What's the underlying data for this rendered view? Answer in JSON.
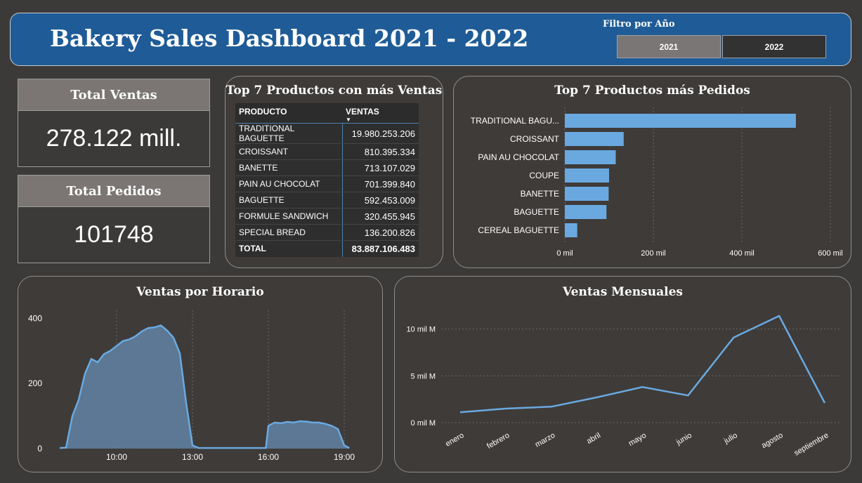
{
  "header": {
    "title": "Bakery Sales Dashboard 2021 - 2022",
    "filter_label": "Filtro por Año",
    "year_buttons": [
      "2021",
      "2022"
    ]
  },
  "kpis": {
    "total_ventas_label": "Total Ventas",
    "total_ventas_value": "278.122 mill.",
    "total_pedidos_label": "Total Pedidos",
    "total_pedidos_value": "101748"
  },
  "top_ventas": {
    "title": "Top 7 Productos con más Ventas",
    "col_product": "PRODUCTO",
    "col_sales": "VENTAS",
    "rows": [
      {
        "product": "TRADITIONAL BAGUETTE",
        "sales": "19.980.253.206"
      },
      {
        "product": "CROISSANT",
        "sales": "810.395.334"
      },
      {
        "product": "BANETTE",
        "sales": "713.107.029"
      },
      {
        "product": "PAIN AU CHOCOLAT",
        "sales": "701.399.840"
      },
      {
        "product": "BAGUETTE",
        "sales": "592.453.009"
      },
      {
        "product": "FORMULE SANDWICH",
        "sales": "320.455.945"
      },
      {
        "product": "SPECIAL BREAD",
        "sales": "136.200.826"
      }
    ],
    "total_label": "TOTAL",
    "total_value": "83.887.106.483"
  },
  "colors": {
    "accent": "#6aa9e0",
    "header_bg": "#1f5c97",
    "panel_bg": "#3e3b39",
    "area_fill": "#5f7f9e"
  },
  "chart_data": [
    {
      "type": "bar",
      "orientation": "horizontal",
      "title": "Top 7 Productos más Pedidos",
      "categories": [
        "TRADITIONAL BAGU...",
        "CROISSANT",
        "PAIN AU CHOCOLAT",
        "COUPE",
        "BANETTE",
        "BAGUETTE",
        "CEREAL BAGUETTE"
      ],
      "values": [
        522,
        133,
        115,
        100,
        99,
        94,
        28
      ],
      "xlim": [
        0,
        600
      ],
      "xticks": [
        "0 mil",
        "200 mil",
        "400 mil",
        "600 mil"
      ],
      "grid": true
    },
    {
      "type": "area",
      "title": "Ventas por Horario",
      "xlim": [
        7.5,
        20
      ],
      "ylim": [
        0,
        420
      ],
      "xticks": [
        "10:00",
        "13:00",
        "16:00",
        "19:00"
      ],
      "yticks": [
        "0",
        "200",
        "400"
      ],
      "x": [
        7.75,
        8.0,
        8.25,
        8.5,
        8.75,
        9.0,
        9.25,
        9.5,
        9.75,
        10.0,
        10.25,
        10.5,
        10.75,
        11.0,
        11.25,
        11.5,
        11.75,
        12.0,
        12.25,
        12.5,
        12.75,
        13.0,
        13.25,
        13.5,
        14.0,
        15.0,
        15.9,
        16.0,
        16.25,
        16.5,
        16.75,
        17.0,
        17.25,
        17.5,
        17.75,
        18.0,
        18.25,
        18.5,
        18.75,
        19.0,
        19.2
      ],
      "values": [
        2,
        3,
        100,
        150,
        230,
        275,
        265,
        290,
        300,
        315,
        330,
        335,
        345,
        360,
        370,
        372,
        378,
        362,
        340,
        292,
        140,
        10,
        2,
        2,
        2,
        2,
        2,
        70,
        80,
        78,
        82,
        80,
        84,
        83,
        80,
        80,
        76,
        70,
        60,
        10,
        2
      ]
    },
    {
      "type": "line",
      "title": "Ventas Mensuales",
      "categories": [
        "enero",
        "febrero",
        "marzo",
        "abril",
        "mayo",
        "junio",
        "julio",
        "agosto",
        "septiembre"
      ],
      "values": [
        1.1,
        1.5,
        1.7,
        2.7,
        3.8,
        2.9,
        9.1,
        11.4,
        2.1
      ],
      "ylim": [
        0,
        12
      ],
      "yticks": [
        "0 mil M",
        "5 mil M",
        "10 mil M"
      ],
      "grid": true
    }
  ]
}
